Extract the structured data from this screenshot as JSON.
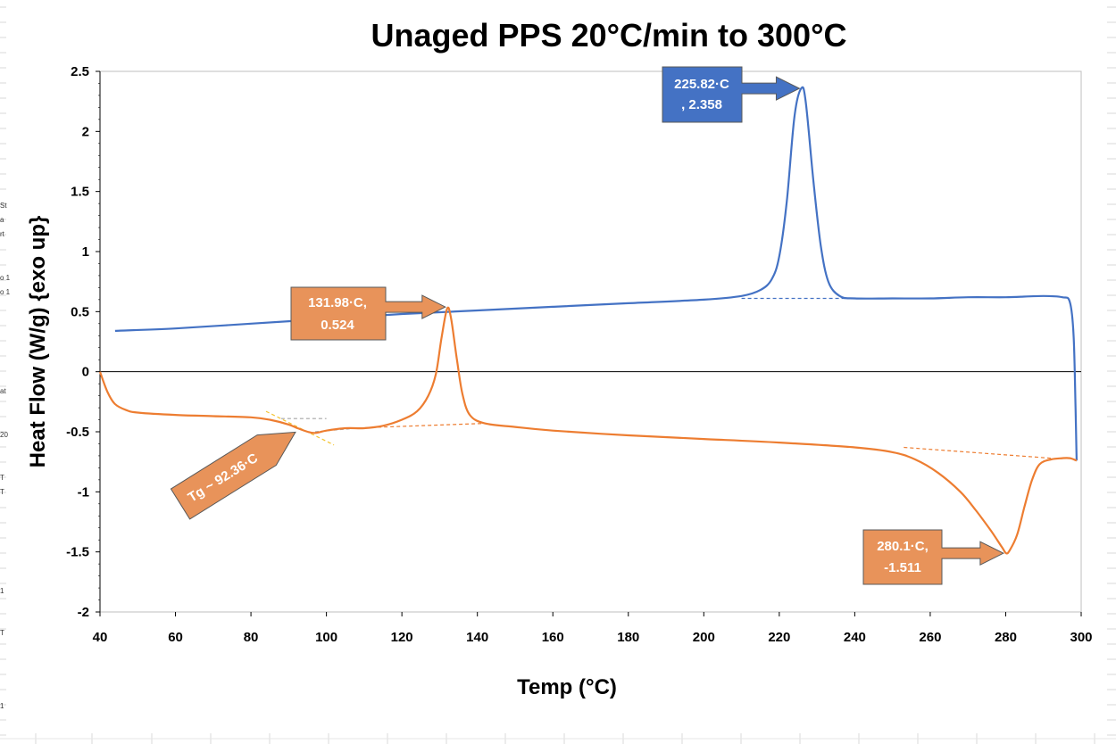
{
  "chart_data": {
    "type": "line",
    "title": "Unaged PPS 20°C/min to 300°C",
    "xlabel": "Temp (°C)",
    "ylabel": "Heat Flow (W/g) {exo up}",
    "xlim": [
      40,
      300
    ],
    "ylim": [
      -2,
      2.5
    ],
    "xticks": [
      "40",
      "60",
      "80",
      "100",
      "120",
      "140",
      "160",
      "180",
      "200",
      "220",
      "240",
      "260",
      "280",
      "300"
    ],
    "yticks": [
      "2.5",
      "2",
      "1.5",
      "1",
      "0.5",
      "0",
      "-0.5",
      "-1",
      "-1.5",
      "-2"
    ],
    "grid": false,
    "legend": "none",
    "series": [
      {
        "color": "#4472c4",
        "x": [
          44,
          60,
          80,
          100,
          120,
          140,
          160,
          180,
          200,
          210,
          215,
          218,
          220,
          222,
          224,
          225.82,
          227,
          229,
          231,
          233,
          236,
          240,
          250,
          260,
          270,
          280,
          290,
          295,
          297,
          298,
          298.5,
          298.8
        ],
        "y": [
          0.34,
          0.36,
          0.4,
          0.44,
          0.48,
          0.51,
          0.54,
          0.57,
          0.6,
          0.63,
          0.68,
          0.77,
          0.96,
          1.42,
          2.12,
          2.358,
          2.25,
          1.6,
          1.05,
          0.75,
          0.63,
          0.61,
          0.61,
          0.61,
          0.62,
          0.62,
          0.63,
          0.62,
          0.58,
          0.3,
          -0.3,
          -0.74
        ]
      },
      {
        "color": "#ed7d31",
        "x": [
          40,
          42,
          44,
          47,
          50,
          60,
          70,
          80,
          85,
          90,
          92.36,
          95,
          97,
          100,
          105,
          110,
          115,
          120,
          124,
          127,
          129,
          130.5,
          131.98,
          133,
          134.5,
          136,
          138,
          142,
          150,
          160,
          180,
          200,
          220,
          240,
          250,
          256,
          262,
          268,
          272,
          276,
          279,
          280.1,
          281,
          283,
          285,
          287,
          289,
          292,
          295,
          297,
          298.8
        ],
        "y": [
          0.0,
          -0.17,
          -0.27,
          -0.32,
          -0.34,
          -0.36,
          -0.37,
          -0.38,
          -0.4,
          -0.44,
          -0.47,
          -0.5,
          -0.51,
          -0.49,
          -0.47,
          -0.47,
          -0.45,
          -0.4,
          -0.33,
          -0.2,
          -0.02,
          0.28,
          0.524,
          0.45,
          0.12,
          -0.18,
          -0.36,
          -0.43,
          -0.46,
          -0.49,
          -0.53,
          -0.56,
          -0.59,
          -0.63,
          -0.67,
          -0.73,
          -0.84,
          -1.0,
          -1.15,
          -1.32,
          -1.46,
          -1.511,
          -1.49,
          -1.36,
          -1.12,
          -0.9,
          -0.77,
          -0.73,
          -0.72,
          -0.72,
          -0.74
        ]
      }
    ],
    "baselines": [
      {
        "color": "#4472c4",
        "x": [
          210,
          242
        ],
        "y": [
          0.61,
          0.61
        ]
      },
      {
        "color": "#ed7d31",
        "x": [
          107,
          142
        ],
        "y": [
          -0.47,
          -0.43
        ]
      },
      {
        "color": "#ed7d31",
        "x": [
          253,
          292
        ],
        "y": [
          -0.63,
          -0.72
        ]
      },
      {
        "color": "#f4c430",
        "x": [
          84,
          102
        ],
        "y": [
          -0.33,
          -0.61
        ]
      },
      {
        "color": "#a6a6a6",
        "x": [
          88,
          100
        ],
        "y": [
          -0.39,
          -0.39
        ]
      },
      {
        "color": "#a6a6a6",
        "x": [
          97,
          108
        ],
        "y": [
          -0.5,
          -0.47
        ]
      }
    ],
    "annotations": [
      {
        "line1": "225.82·C",
        "line2": ", 2.358",
        "fill": "#4472c4",
        "x": 225.82,
        "y": 2.358
      },
      {
        "line1": "131.98·C,",
        "line2": "0.524",
        "fill": "#e8935a",
        "x": 131.98,
        "y": 0.524
      },
      {
        "line1": "280.1·C,",
        "line2": "-1.511",
        "fill": "#e8935a",
        "x": 280.1,
        "y": -1.511
      },
      {
        "line1": "Tg ~ 92.36·C",
        "fill": "#e8935a",
        "x": 92.36,
        "y": -0.5
      }
    ]
  },
  "edge_fragments": [
    "St",
    "a",
    "rt",
    "o 1",
    "o 1",
    "at",
    "20",
    "T",
    "T",
    "1",
    "T",
    "1"
  ]
}
